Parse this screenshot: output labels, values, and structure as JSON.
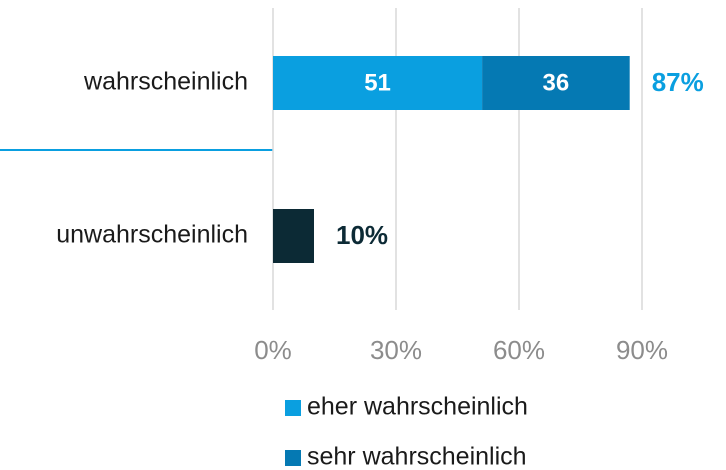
{
  "chart_data": {
    "type": "stacked_bar_horizontal",
    "categories": [
      "wahrscheinlich",
      "unwahrscheinlich"
    ],
    "series": [
      {
        "name": "eher wahrscheinlich",
        "color": "#0a9fe0",
        "values": [
          51,
          null
        ]
      },
      {
        "name": "sehr wahrscheinlich",
        "color": "#0579b3",
        "values": [
          36,
          null
        ]
      },
      {
        "color": "#0c2a35",
        "values": [
          null,
          10
        ]
      }
    ],
    "totals": [
      87,
      10
    ],
    "total_labels": [
      "87%",
      "10%"
    ],
    "total_colors": [
      "#0a9fe0",
      "#0c2a35"
    ],
    "xlim": [
      0,
      100
    ],
    "xticks": [
      {
        "value": 0,
        "label": "0%"
      },
      {
        "value": 30,
        "label": "30%"
      },
      {
        "value": 60,
        "label": "60%"
      },
      {
        "value": 90,
        "label": "90%"
      }
    ],
    "grid": true
  }
}
